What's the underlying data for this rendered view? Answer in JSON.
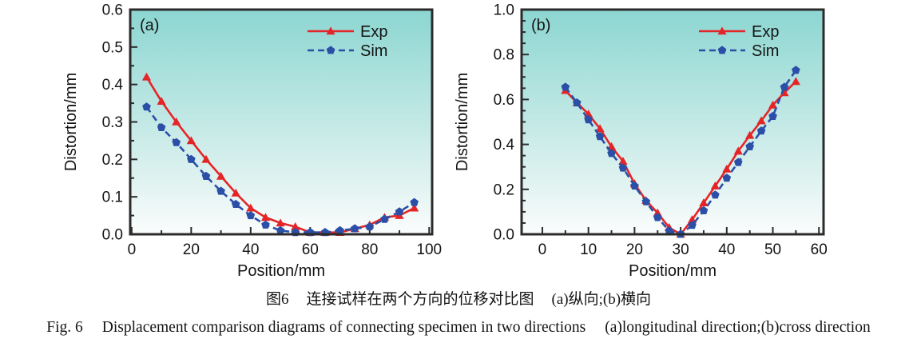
{
  "figure_captions": {
    "zh": {
      "fig_no": "图6",
      "title": "连接试样在两个方向的位移对比图",
      "sub": "(a)纵向;(b)横向"
    },
    "en": {
      "fig_no": "Fig. 6",
      "title": "Displacement comparison diagrams of connecting specimen in two directions",
      "sub": "(a)longitudinal direction;(b)cross direction"
    }
  },
  "colors": {
    "exp_red": "#e42528",
    "sim_blue": "#2b4fa7",
    "frame": "#2b2b2b",
    "bg_gradient_top": "#8cd6d1",
    "bg_gradient_mid": "#e1f3f1",
    "bg_gradient_bottom": "#fbfdfd"
  },
  "chart_data": [
    {
      "type": "line",
      "panel_label": "(a)",
      "title": "",
      "xlabel": "Position/mm",
      "ylabel": "Distortion/mm",
      "xlim": [
        -0.5,
        101
      ],
      "ylim": [
        0,
        0.6
      ],
      "grid": false,
      "legend_position": "top-right",
      "frame_color": "#2b2b2b",
      "bg": {
        "top": "#8cd6d1",
        "mid": "#e1f3f1",
        "bottom": "#fbfdfd"
      },
      "xticks": {
        "values": [
          0,
          20,
          40,
          60,
          80,
          100
        ],
        "labels": [
          "0",
          "20",
          "40",
          "60",
          "80",
          "100"
        ],
        "minor": [
          10,
          30,
          50,
          70,
          90
        ]
      },
      "yticks": {
        "values": [
          0,
          0.1,
          0.2,
          0.3,
          0.4,
          0.5,
          0.6
        ],
        "labels": [
          "0.0",
          "0.1",
          "0.2",
          "0.3",
          "0.4",
          "0.5",
          "0.6"
        ],
        "minor": [
          0.05,
          0.15,
          0.25,
          0.35,
          0.45,
          0.55
        ]
      },
      "x": [
        5,
        10,
        15,
        20,
        25,
        30,
        35,
        40,
        45,
        50,
        55,
        60,
        65,
        70,
        75,
        80,
        85,
        90,
        95
      ],
      "series": [
        {
          "name": "Exp",
          "marker": "triangle",
          "line": "solid",
          "color": "#e42528",
          "values": [
            0.42,
            0.355,
            0.3,
            0.25,
            0.2,
            0.155,
            0.11,
            0.07,
            0.045,
            0.03,
            0.02,
            0.005,
            0.005,
            0.005,
            0.015,
            0.025,
            0.045,
            0.05,
            0.07
          ]
        },
        {
          "name": "Sim",
          "marker": "pentagon",
          "line": "dashed",
          "color": "#2b4fa7",
          "values": [
            0.34,
            0.285,
            0.245,
            0.2,
            0.155,
            0.115,
            0.08,
            0.05,
            0.025,
            0.01,
            0.005,
            0.005,
            0.005,
            0.01,
            0.015,
            0.02,
            0.04,
            0.06,
            0.085
          ]
        }
      ]
    },
    {
      "type": "line",
      "panel_label": "(b)",
      "title": "",
      "xlabel": "Position/mm",
      "ylabel": "Distortion/mm",
      "xlim": [
        -4.5,
        61
      ],
      "ylim": [
        0,
        1.0
      ],
      "grid": false,
      "legend_position": "top-right",
      "frame_color": "#2b2b2b",
      "bg": {
        "top": "#8cd6d1",
        "mid": "#e1f3f1",
        "bottom": "#fbfdfd"
      },
      "xticks": {
        "values": [
          0,
          10,
          20,
          30,
          40,
          50,
          60
        ],
        "labels": [
          "0",
          "10",
          "20",
          "30",
          "40",
          "50",
          "60"
        ],
        "minor": [
          5,
          15,
          25,
          35,
          45,
          55
        ]
      },
      "yticks": {
        "values": [
          0,
          0.2,
          0.4,
          0.6,
          0.8,
          1.0
        ],
        "labels": [
          "0.0",
          "0.2",
          "0.4",
          "0.6",
          "0.8",
          "1.0"
        ],
        "minor": [
          0.05,
          0.1,
          0.15,
          0.25,
          0.3,
          0.35,
          0.45,
          0.5,
          0.55,
          0.65,
          0.7,
          0.75,
          0.85,
          0.9,
          0.95
        ]
      },
      "x": [
        5,
        7.5,
        10,
        12.5,
        15,
        17.5,
        20,
        22.5,
        25,
        27.5,
        30,
        32.5,
        35,
        37.5,
        40,
        42.5,
        45,
        47.5,
        50,
        52.5,
        55
      ],
      "series": [
        {
          "name": "Exp",
          "marker": "triangle",
          "line": "solid",
          "color": "#e42528",
          "values": [
            0.64,
            0.585,
            0.535,
            0.47,
            0.39,
            0.325,
            0.225,
            0.15,
            0.095,
            0.03,
            0.0,
            0.065,
            0.14,
            0.215,
            0.29,
            0.37,
            0.44,
            0.505,
            0.575,
            0.63,
            0.68
          ]
        },
        {
          "name": "Sim",
          "marker": "pentagon",
          "line": "dashed",
          "color": "#2b4fa7",
          "values": [
            0.655,
            0.585,
            0.51,
            0.435,
            0.36,
            0.295,
            0.215,
            0.145,
            0.075,
            0.015,
            0.0,
            0.04,
            0.105,
            0.175,
            0.25,
            0.32,
            0.39,
            0.46,
            0.525,
            0.655,
            0.73
          ]
        }
      ]
    }
  ]
}
